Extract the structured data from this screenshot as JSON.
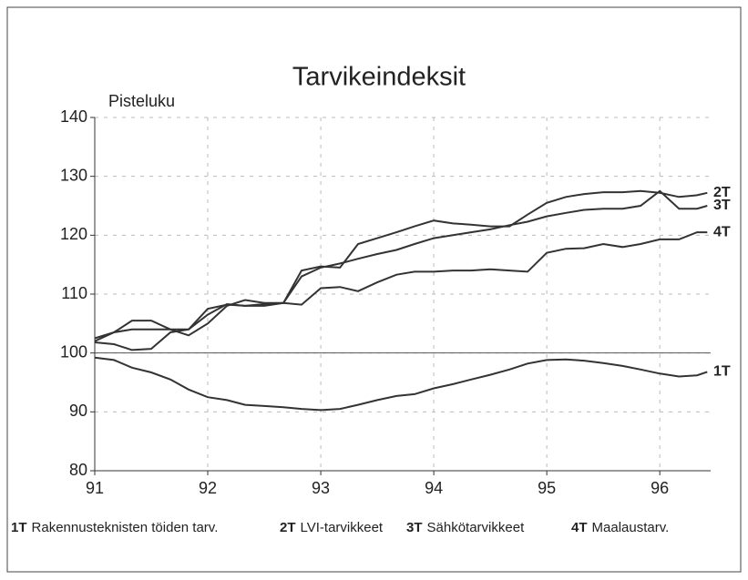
{
  "chart_data": {
    "type": "line",
    "title": "Tarvikeindeksit",
    "y_label": "Pisteluku",
    "x": [
      91,
      91.17,
      91.33,
      91.5,
      91.67,
      91.83,
      92,
      92.17,
      92.33,
      92.5,
      92.67,
      92.83,
      93,
      93.17,
      93.33,
      93.5,
      93.67,
      93.83,
      94,
      94.17,
      94.33,
      94.5,
      94.67,
      94.83,
      95,
      95.17,
      95.33,
      95.5,
      95.67,
      95.83,
      96,
      96.17,
      96.33,
      96.42
    ],
    "series": [
      {
        "code": "1T",
        "name": "Rakennusteknisten töiden tarv.",
        "color": "#333333",
        "values": [
          99.2,
          98.8,
          97.5,
          96.7,
          95.5,
          93.8,
          92.5,
          92.0,
          91.2,
          91.0,
          90.8,
          90.5,
          90.3,
          90.5,
          91.2,
          92.0,
          92.7,
          93.0,
          94.0,
          94.7,
          95.5,
          96.3,
          97.2,
          98.2,
          98.8,
          98.9,
          98.7,
          98.3,
          97.8,
          97.2,
          96.5,
          96.0,
          96.2,
          96.8
        ]
      },
      {
        "code": "2T",
        "name": "LVI-tarvikkeet",
        "color": "#333333",
        "values": [
          102,
          103.5,
          105.5,
          105.5,
          104,
          103,
          105,
          108,
          109,
          108.5,
          108.5,
          114,
          114.7,
          114.5,
          118.5,
          119.5,
          120.5,
          121.5,
          122.5,
          122,
          121.8,
          121.5,
          121.5,
          123.5,
          125.5,
          126.5,
          127,
          127.3,
          127.3,
          127.5,
          127.2,
          126.5,
          126.8,
          127.2
        ]
      },
      {
        "code": "3T",
        "name": "Sähkötarvikkeet",
        "color": "#333333",
        "values": [
          102.5,
          103.5,
          104,
          104,
          104,
          104,
          107.5,
          108.2,
          108,
          108.3,
          108.5,
          113,
          114.5,
          115.2,
          116,
          116.8,
          117.5,
          118.5,
          119.5,
          120,
          120.5,
          121,
          121.7,
          122.3,
          123.2,
          123.8,
          124.3,
          124.5,
          124.5,
          125,
          127.5,
          124.5,
          124.5,
          125
        ]
      },
      {
        "code": "4T",
        "name": "Maalaustarv.",
        "color": "#333333",
        "values": [
          101.8,
          101.5,
          100.5,
          100.7,
          103.5,
          104,
          106.5,
          108.3,
          108,
          108,
          108.5,
          108.2,
          111,
          111.2,
          110.5,
          112,
          113.3,
          113.8,
          113.8,
          114,
          114,
          114.2,
          114,
          113.8,
          117,
          117.7,
          117.8,
          118.5,
          118,
          118.5,
          119.3,
          119.3,
          120.5,
          120.5
        ]
      }
    ],
    "xlim": [
      91,
      96.45
    ],
    "xticks": [
      91,
      92,
      93,
      94,
      95,
      96
    ],
    "ylim": [
      80,
      140
    ],
    "yticks": [
      80,
      90,
      100,
      110,
      120,
      130,
      140
    ],
    "reference_line": 100,
    "grid": true
  }
}
